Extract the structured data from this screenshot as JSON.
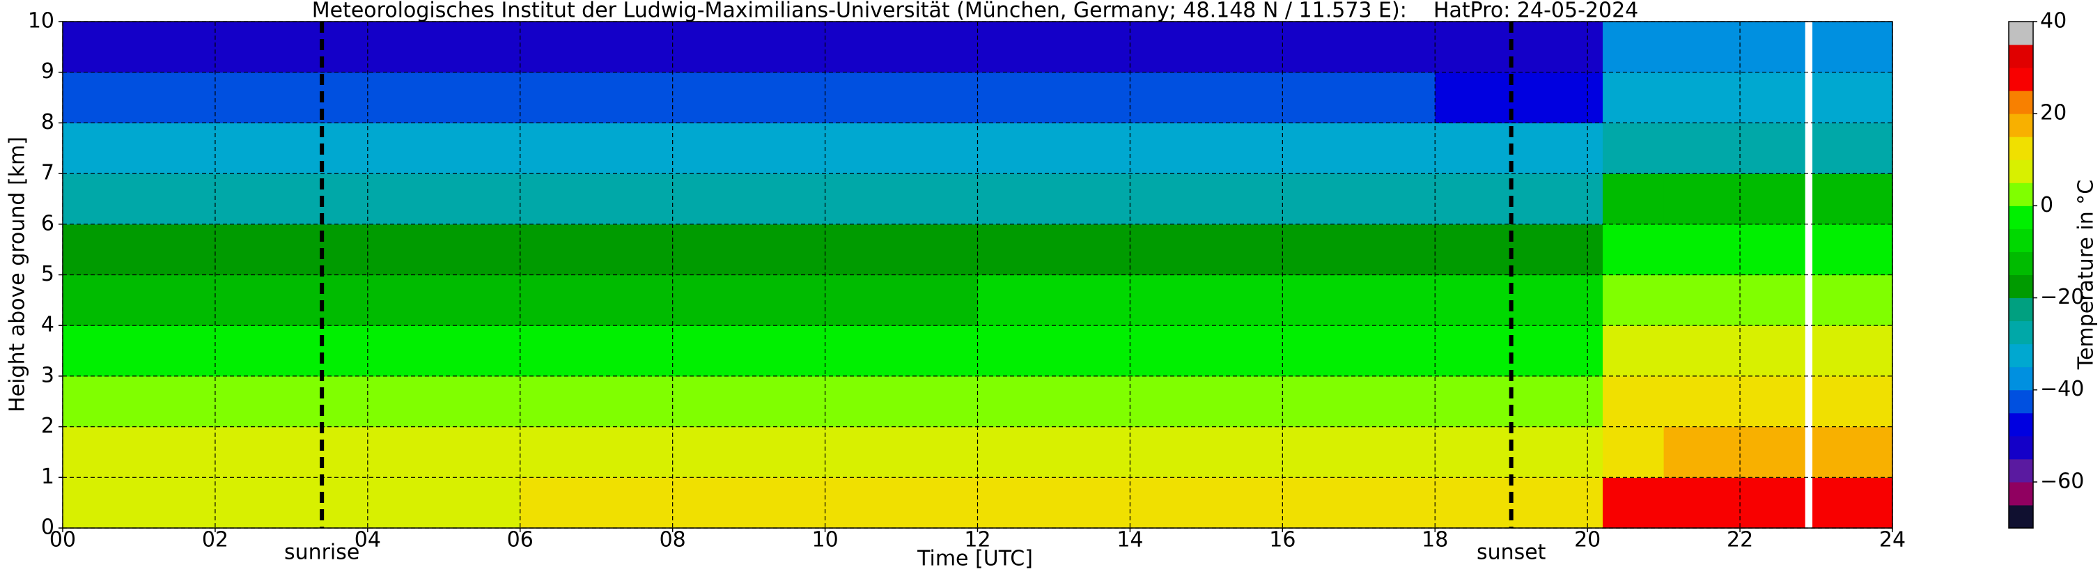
{
  "chart_data": {
    "type": "heatmap",
    "title": "Meteorologisches Institut der Ludwig-Maximilians-Universität (München, Germany; 48.148 N / 11.573 E):    HatPro: 24-05-2024",
    "xlabel": "Time [UTC]",
    "ylabel": "Height above ground [km]",
    "colorbar_label": "Temperature in °C",
    "xbins": [
      0,
      3,
      6,
      9,
      12,
      15,
      18,
      20.2,
      21,
      22,
      22.85,
      22.95,
      24
    ],
    "ybins": [
      0,
      1,
      2,
      3,
      4,
      5,
      6,
      7,
      8,
      9,
      10
    ],
    "values": [
      [
        9,
        6,
        2,
        -4,
        -11,
        -18,
        -27,
        -34,
        -44,
        -55
      ],
      [
        8,
        6,
        2,
        -4,
        -11,
        -18,
        -27,
        -34,
        -44,
        -55
      ],
      [
        10,
        7,
        2,
        -4,
        -11,
        -17,
        -26,
        -34,
        -44,
        -54
      ],
      [
        12,
        7,
        2,
        -3,
        -11,
        -17,
        -26,
        -34,
        -45,
        -54
      ],
      [
        14,
        7,
        3,
        -3,
        -10,
        -17,
        -26,
        -34,
        -45,
        -54
      ],
      [
        14,
        7,
        3,
        -3,
        -10,
        -17,
        -27,
        -34,
        -45,
        -54
      ],
      [
        13,
        7,
        3,
        -3,
        -10,
        -17,
        -27,
        -35,
        -46,
        -54
      ],
      [
        27,
        14,
        11,
        6,
        1,
        -4,
        -13,
        -26,
        -33,
        -38
      ],
      [
        28,
        15,
        11,
        6,
        1,
        -4,
        -13,
        -26,
        -33,
        -38
      ],
      [
        27,
        15,
        11,
        5,
        0,
        -4,
        -13,
        -26,
        -33,
        -38
      ],
      [
        null,
        null,
        null,
        null,
        null,
        null,
        null,
        null,
        null,
        null
      ],
      [
        27,
        15,
        11,
        6,
        1,
        -4,
        -13,
        -26,
        -33,
        -38
      ]
    ],
    "xlim": [
      0,
      24
    ],
    "xticks": [
      {
        "value": 0,
        "label": "00"
      },
      {
        "value": 2,
        "label": "02"
      },
      {
        "value": 4,
        "label": "04"
      },
      {
        "value": 6,
        "label": "06"
      },
      {
        "value": 8,
        "label": "08"
      },
      10,
      12,
      14,
      16,
      18,
      20,
      22,
      24
    ],
    "ylim": [
      0,
      10
    ],
    "yticks": [
      0,
      1,
      2,
      3,
      4,
      5,
      6,
      7,
      8,
      9,
      10
    ],
    "clim": [
      -70,
      40
    ],
    "cticks": [
      {
        "value": -60,
        "label": "−60"
      },
      {
        "value": -40,
        "label": "−40"
      },
      {
        "value": -20,
        "label": "−20"
      },
      0,
      20,
      40
    ],
    "colormap": [
      "#101030",
      "#900060",
      "#5a1aa0",
      "#1400c8",
      "#0000e0",
      "#0050e0",
      "#0090e0",
      "#00a8d0",
      "#00a8a8",
      "#00a080",
      "#009b00",
      "#00bb00",
      "#00d800",
      "#00f000",
      "#80ff00",
      "#d8f000",
      "#f0e000",
      "#f8b000",
      "#f88000",
      "#f80000",
      "#e00000",
      "#c0c0c0"
    ],
    "grid": true,
    "annotations": [
      {
        "x": 3.4,
        "label": "sunrise"
      },
      {
        "x": 19.0,
        "label": "sunset"
      }
    ]
  }
}
